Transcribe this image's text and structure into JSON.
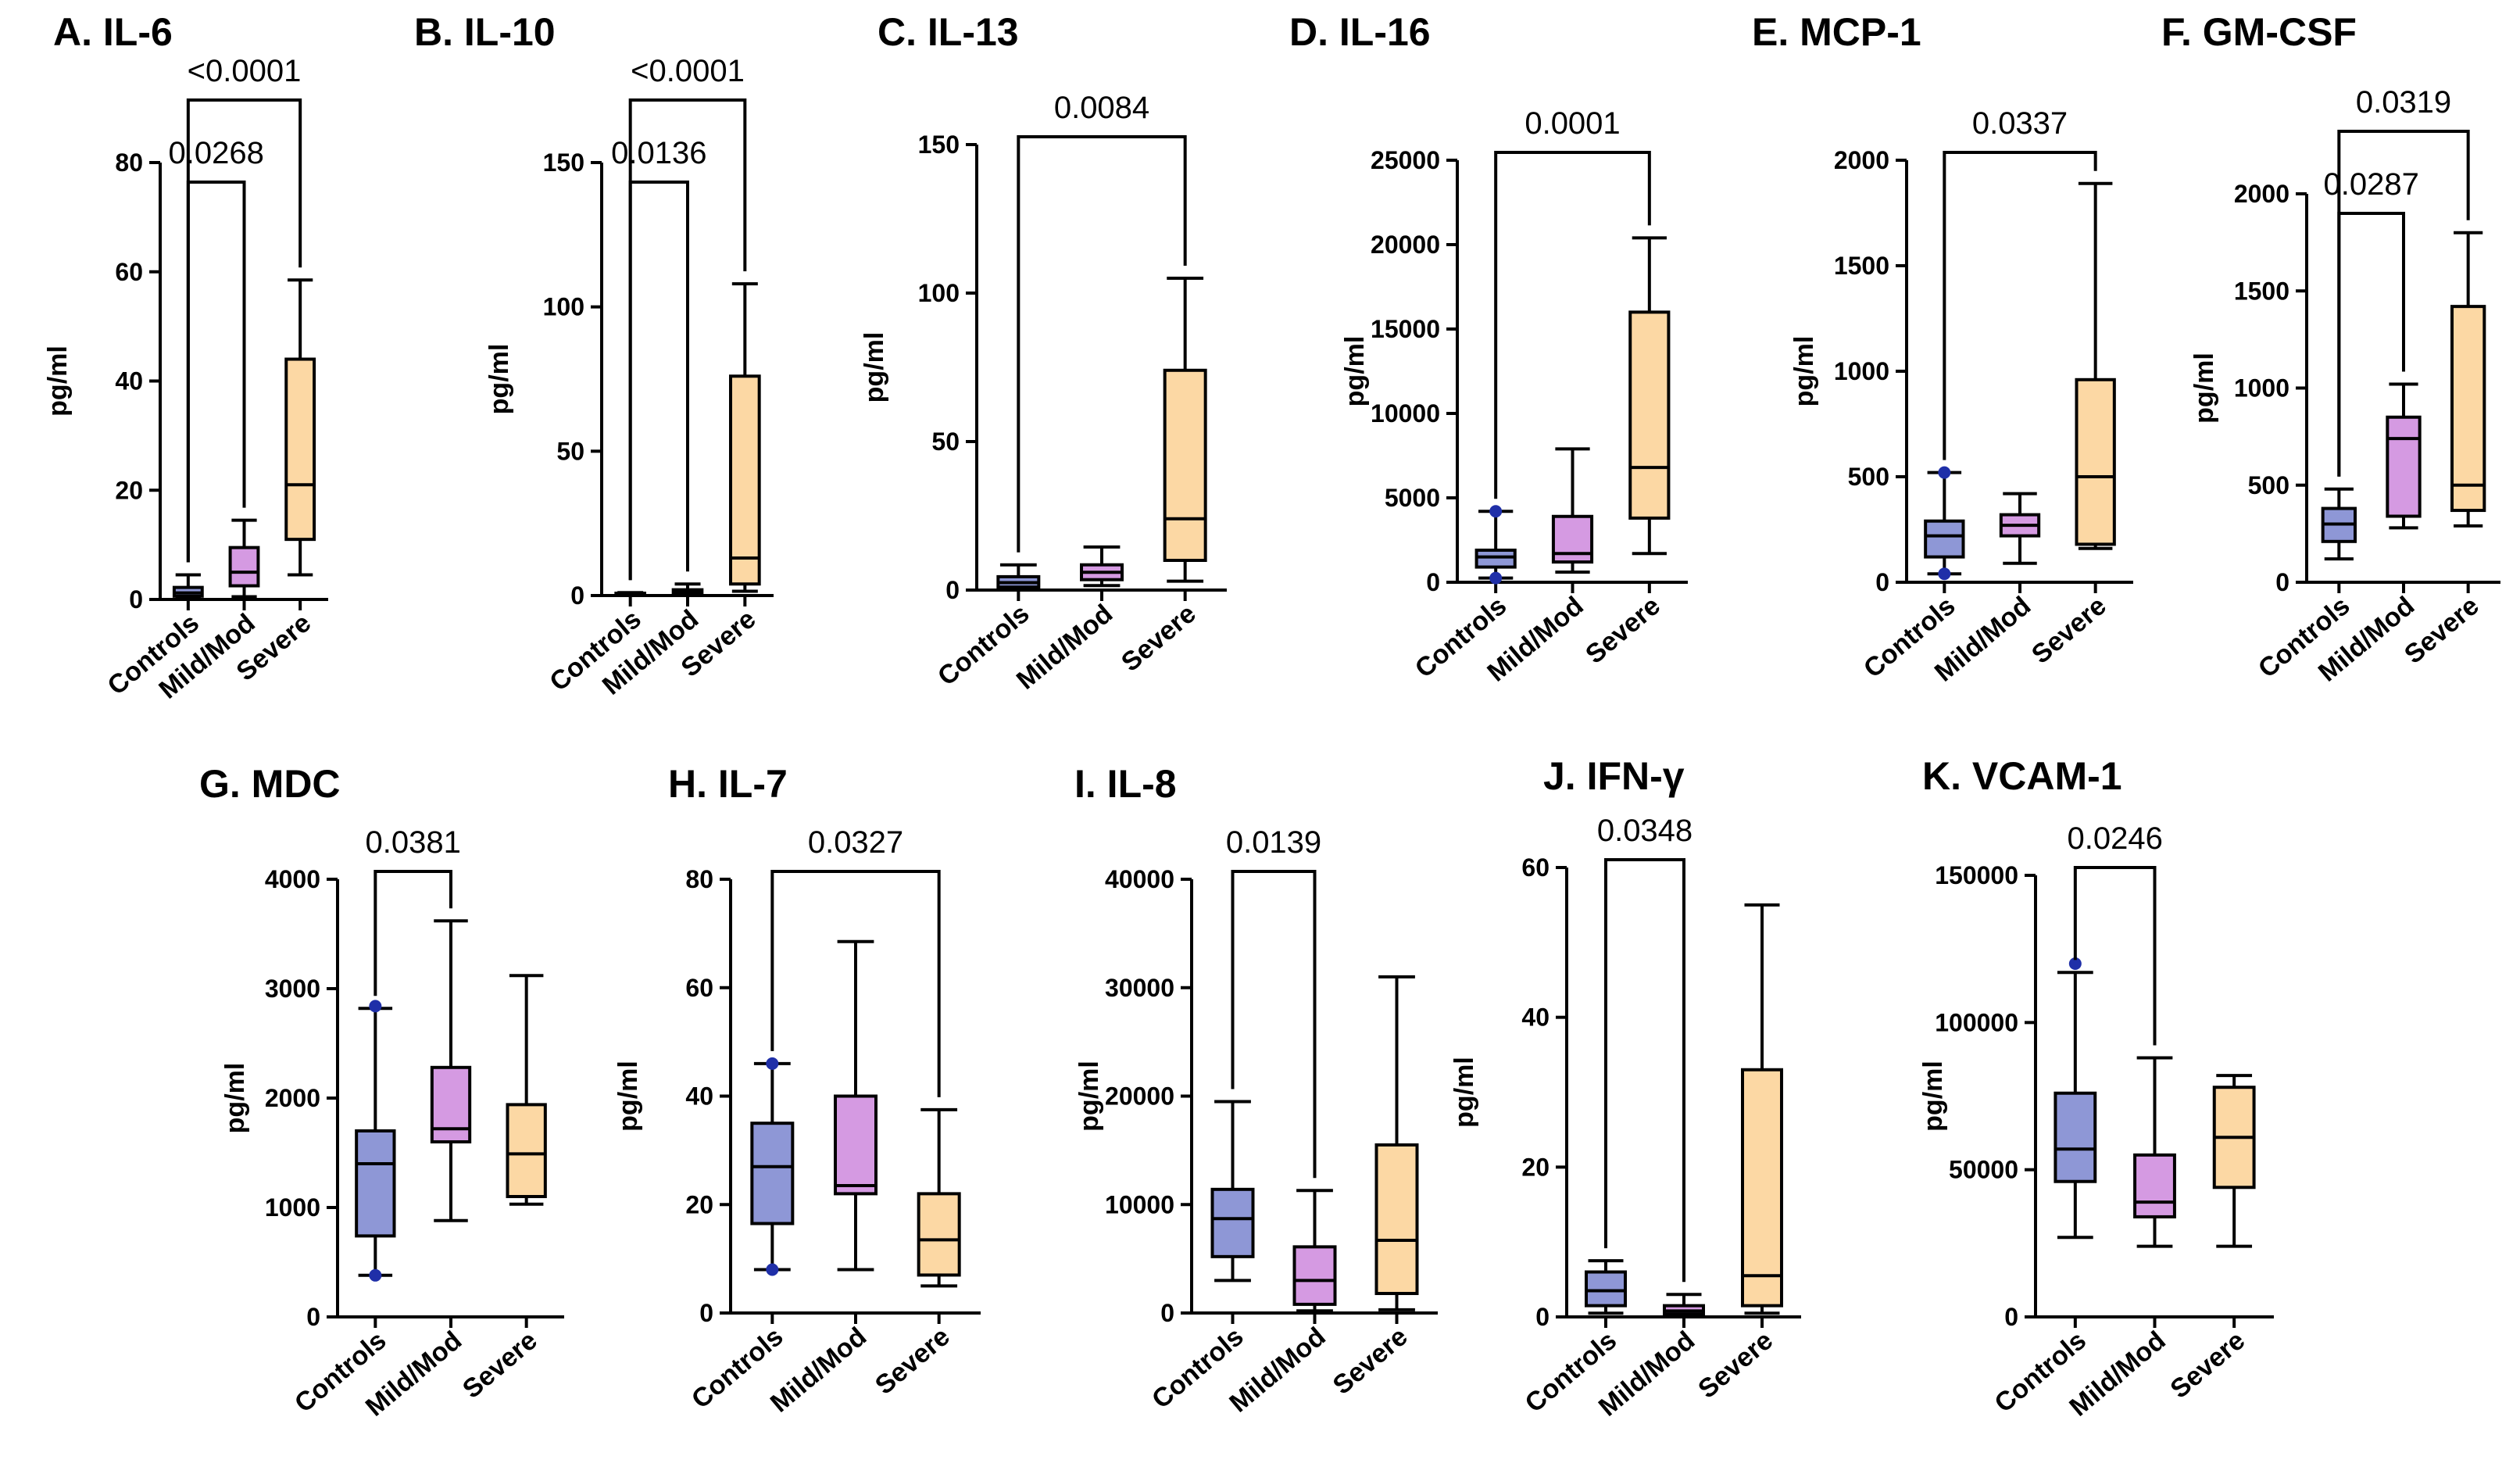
{
  "figure": {
    "group_colors": [
      "#8e97d6",
      "#d59ae2",
      "#fcd8a4"
    ],
    "outlier_color": "#1f2fa8"
  },
  "chart_data": [
    {
      "type": "box",
      "title": "A. IL-6",
      "ylabel": "pg/ml",
      "categories": [
        "Controls",
        "Mild/Mod",
        "Severe"
      ],
      "ylim": [
        0,
        80
      ],
      "ticks": [
        0,
        20,
        40,
        60,
        80
      ],
      "boxes": [
        {
          "min": 0.3,
          "q1": 0.6,
          "median": 1.2,
          "q3": 2.2,
          "max": 4.5
        },
        {
          "min": 0.5,
          "q1": 2.5,
          "median": 5.0,
          "q3": 9.5,
          "max": 14.5
        },
        {
          "min": 4.5,
          "q1": 11,
          "median": 21,
          "q3": 44,
          "max": 58.5
        }
      ],
      "outliers": [],
      "brackets": [
        {
          "from": 0,
          "to": 1,
          "label": "0.0268"
        },
        {
          "from": 0,
          "to": 2,
          "label": "<0.0001"
        }
      ]
    },
    {
      "type": "box",
      "title": "B. IL-10",
      "ylabel": "pg/ml",
      "categories": [
        "Controls",
        "Mild/Mod",
        "Severe"
      ],
      "ylim": [
        0,
        150
      ],
      "ticks": [
        0,
        50,
        100,
        150
      ],
      "boxes": [
        {
          "min": 0.2,
          "q1": 0.4,
          "median": 0.6,
          "q3": 0.8,
          "max": 1.0
        },
        {
          "min": 0.3,
          "q1": 0.5,
          "median": 1.0,
          "q3": 2.0,
          "max": 4.0
        },
        {
          "min": 1.5,
          "q1": 4,
          "median": 13,
          "q3": 76,
          "max": 108
        }
      ],
      "outliers": [],
      "brackets": [
        {
          "from": 0,
          "to": 1,
          "label": "0.0136"
        },
        {
          "from": 0,
          "to": 2,
          "label": "<0.0001"
        }
      ]
    },
    {
      "type": "box",
      "title": "C. IL-13",
      "ylabel": "pg/ml",
      "categories": [
        "Controls",
        "Mild/Mod",
        "Severe"
      ],
      "ylim": [
        0,
        150
      ],
      "ticks": [
        0,
        50,
        100,
        150
      ],
      "boxes": [
        {
          "min": 0.5,
          "q1": 1.0,
          "median": 2.5,
          "q3": 4.5,
          "max": 8.5
        },
        {
          "min": 1.5,
          "q1": 3.5,
          "median": 6.0,
          "q3": 8.5,
          "max": 14.5
        },
        {
          "min": 3,
          "q1": 10,
          "median": 24,
          "q3": 74,
          "max": 105
        }
      ],
      "outliers": [],
      "brackets": [
        {
          "from": 0,
          "to": 2,
          "label": "0.0084"
        }
      ]
    },
    {
      "type": "box",
      "title": "D. IL-16",
      "ylabel": "pg/ml",
      "categories": [
        "Controls",
        "Mild/Mod",
        "Severe"
      ],
      "ylim": [
        0,
        25000
      ],
      "ticks": [
        0,
        5000,
        10000,
        15000,
        20000,
        25000
      ],
      "boxes": [
        {
          "min": 250,
          "q1": 900,
          "median": 1500,
          "q3": 1900,
          "max": 4200
        },
        {
          "min": 600,
          "q1": 1200,
          "median": 1700,
          "q3": 3900,
          "max": 7900
        },
        {
          "min": 1700,
          "q1": 3800,
          "median": 6800,
          "q3": 16000,
          "max": 20400
        }
      ],
      "outliers": [
        {
          "group": 0,
          "value": 4200
        },
        {
          "group": 0,
          "value": 250
        }
      ],
      "brackets": [
        {
          "from": 0,
          "to": 2,
          "label": "0.0001"
        }
      ]
    },
    {
      "type": "box",
      "title": "E. MCP-1",
      "ylabel": "pg/ml",
      "categories": [
        "Controls",
        "Mild/Mod",
        "Severe"
      ],
      "ylim": [
        0,
        2000
      ],
      "ticks": [
        0,
        500,
        1000,
        1500,
        2000
      ],
      "boxes": [
        {
          "min": 40,
          "q1": 120,
          "median": 220,
          "q3": 290,
          "max": 520
        },
        {
          "min": 90,
          "q1": 220,
          "median": 270,
          "q3": 320,
          "max": 420
        },
        {
          "min": 160,
          "q1": 180,
          "median": 500,
          "q3": 960,
          "max": 1890
        }
      ],
      "outliers": [
        {
          "group": 0,
          "value": 520
        },
        {
          "group": 0,
          "value": 40
        }
      ],
      "brackets": [
        {
          "from": 0,
          "to": 2,
          "label": "0.0337"
        }
      ]
    },
    {
      "type": "box",
      "title": "F. GM-CSF",
      "ylabel": "pg/ml",
      "categories": [
        "Controls",
        "Mild/Mod",
        "Severe"
      ],
      "ylim": [
        0,
        2000
      ],
      "ticks": [
        0,
        500,
        1000,
        1500,
        2000
      ],
      "boxes": [
        {
          "min": 120,
          "q1": 210,
          "median": 300,
          "q3": 380,
          "max": 480
        },
        {
          "min": 280,
          "q1": 340,
          "median": 740,
          "q3": 850,
          "max": 1020
        },
        {
          "min": 290,
          "q1": 370,
          "median": 500,
          "q3": 1420,
          "max": 1800
        }
      ],
      "outliers": [],
      "brackets": [
        {
          "from": 0,
          "to": 1,
          "label": "0.0287"
        },
        {
          "from": 0,
          "to": 2,
          "label": "0.0319"
        }
      ]
    },
    {
      "type": "box",
      "title": "G. MDC",
      "ylabel": "pg/ml",
      "categories": [
        "Controls",
        "Mild/Mod",
        "Severe"
      ],
      "ylim": [
        0,
        4000
      ],
      "ticks": [
        0,
        1000,
        2000,
        3000,
        4000
      ],
      "boxes": [
        {
          "min": 380,
          "q1": 740,
          "median": 1400,
          "q3": 1700,
          "max": 2820
        },
        {
          "min": 880,
          "q1": 1600,
          "median": 1720,
          "q3": 2280,
          "max": 3620
        },
        {
          "min": 1030,
          "q1": 1100,
          "median": 1490,
          "q3": 1940,
          "max": 3120
        }
      ],
      "outliers": [
        {
          "group": 0,
          "value": 2840
        },
        {
          "group": 0,
          "value": 380
        }
      ],
      "brackets": [
        {
          "from": 0,
          "to": 1,
          "label": "0.0381"
        }
      ]
    },
    {
      "type": "box",
      "title": "H. IL-7",
      "ylabel": "pg/ml",
      "categories": [
        "Controls",
        "Mild/Mod",
        "Severe"
      ],
      "ylim": [
        0,
        80
      ],
      "ticks": [
        0,
        20,
        40,
        60,
        80
      ],
      "boxes": [
        {
          "min": 8,
          "q1": 16.5,
          "median": 27,
          "q3": 35,
          "max": 46
        },
        {
          "min": 8,
          "q1": 22,
          "median": 23.5,
          "q3": 40,
          "max": 68.5
        },
        {
          "min": 5,
          "q1": 7,
          "median": 13.5,
          "q3": 22,
          "max": 37.5
        }
      ],
      "outliers": [
        {
          "group": 0,
          "value": 46
        },
        {
          "group": 0,
          "value": 8
        }
      ],
      "brackets": [
        {
          "from": 0,
          "to": 2,
          "label": "0.0327"
        }
      ]
    },
    {
      "type": "box",
      "title": "I. IL-8",
      "ylabel": "pg/ml",
      "categories": [
        "Controls",
        "Mild/Mod",
        "Severe"
      ],
      "ylim": [
        0,
        40000
      ],
      "ticks": [
        0,
        10000,
        20000,
        30000,
        40000
      ],
      "boxes": [
        {
          "min": 3000,
          "q1": 5200,
          "median": 8700,
          "q3": 11400,
          "max": 19500
        },
        {
          "min": 200,
          "q1": 800,
          "median": 3000,
          "q3": 6100,
          "max": 11300
        },
        {
          "min": 300,
          "q1": 1800,
          "median": 6700,
          "q3": 15500,
          "max": 31000
        }
      ],
      "outliers": [],
      "brackets": [
        {
          "from": 0,
          "to": 1,
          "label": "0.0139"
        }
      ]
    },
    {
      "type": "box",
      "title": "J. IFN-γ",
      "ylabel": "pg/ml",
      "categories": [
        "Controls",
        "Mild/Mod",
        "Severe"
      ],
      "ylim": [
        0,
        60
      ],
      "ticks": [
        0,
        20,
        40,
        60
      ],
      "boxes": [
        {
          "min": 0.5,
          "q1": 1.5,
          "median": 3.5,
          "q3": 6,
          "max": 7.5
        },
        {
          "min": 0.2,
          "q1": 0.4,
          "median": 0.8,
          "q3": 1.5,
          "max": 3
        },
        {
          "min": 0.5,
          "q1": 1.5,
          "median": 5.5,
          "q3": 33,
          "max": 55
        }
      ],
      "outliers": [],
      "brackets": [
        {
          "from": 0,
          "to": 1,
          "label": "0.0348"
        }
      ]
    },
    {
      "type": "box",
      "title": "K. VCAM-1",
      "ylabel": "pg/ml",
      "categories": [
        "Controls",
        "Mild/Mod",
        "Severe"
      ],
      "ylim": [
        0,
        150000
      ],
      "ticks": [
        0,
        50000,
        100000,
        150000
      ],
      "boxes": [
        {
          "min": 27000,
          "q1": 46000,
          "median": 57000,
          "q3": 76000,
          "max": 117000
        },
        {
          "min": 24000,
          "q1": 34000,
          "median": 39000,
          "q3": 55000,
          "max": 88000
        },
        {
          "min": 24000,
          "q1": 44000,
          "median": 61000,
          "q3": 78000,
          "max": 82000
        }
      ],
      "outliers": [
        {
          "group": 0,
          "value": 120000
        }
      ],
      "brackets": [
        {
          "from": 0,
          "to": 1,
          "label": "0.0246"
        }
      ]
    }
  ]
}
